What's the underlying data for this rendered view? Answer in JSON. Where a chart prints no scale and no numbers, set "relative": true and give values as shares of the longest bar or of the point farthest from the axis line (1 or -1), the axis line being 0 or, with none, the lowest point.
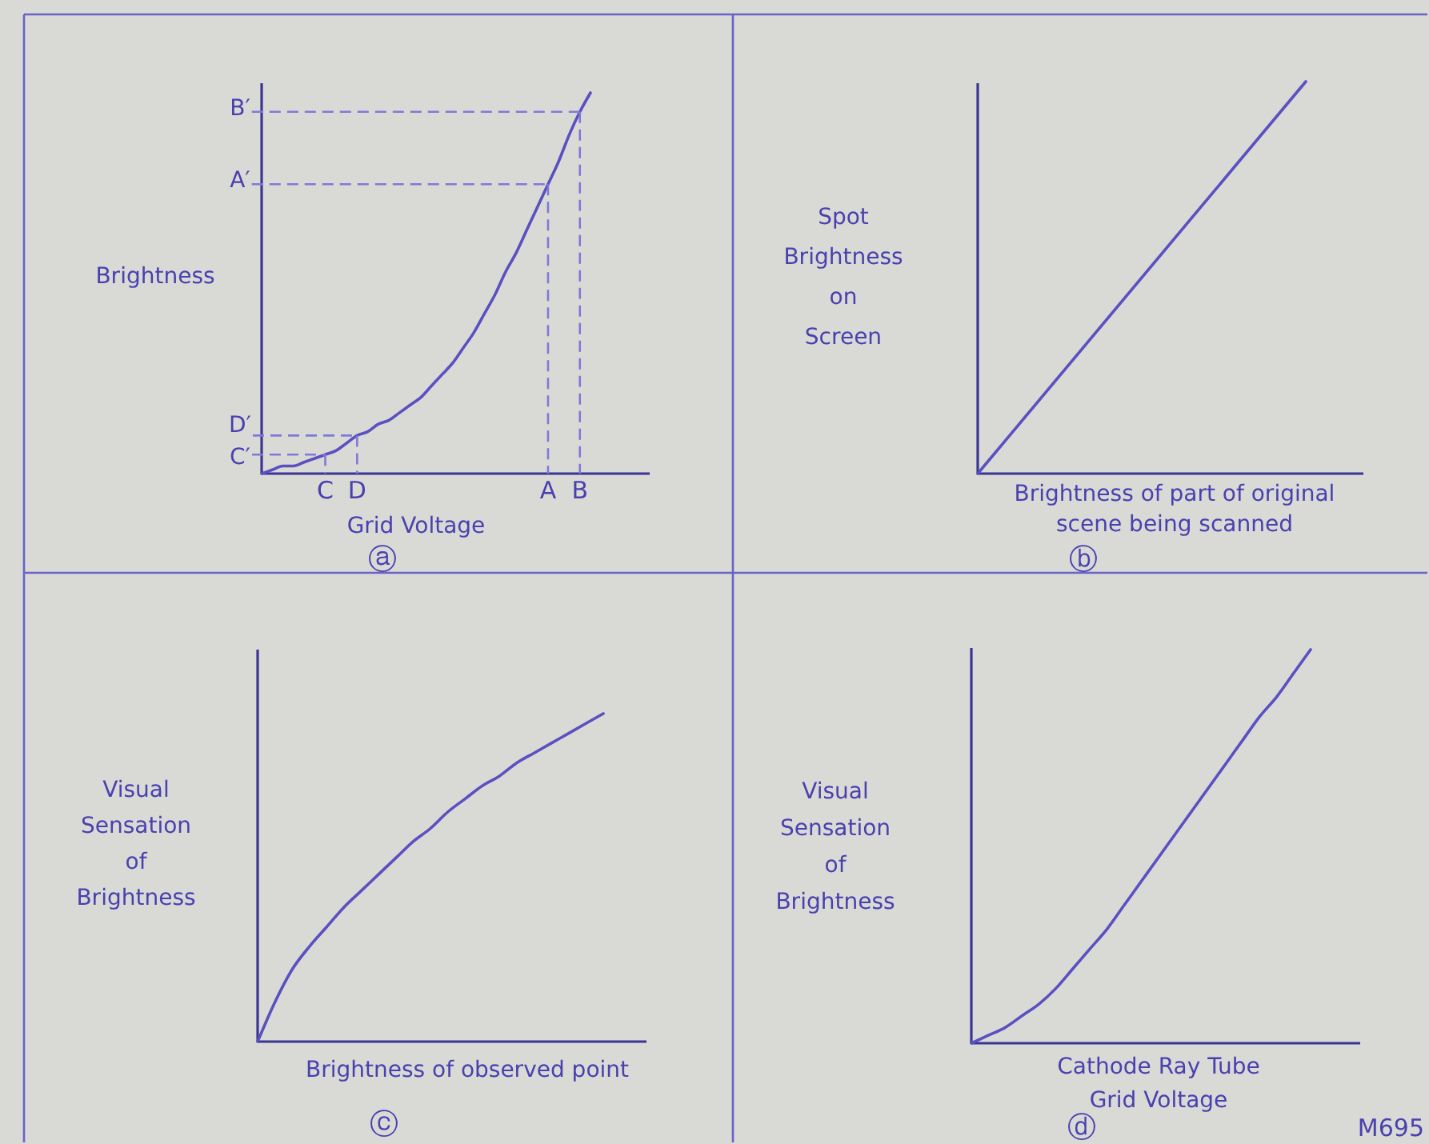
{
  "chart_data": [
    {
      "type": "line",
      "relative": true,
      "title": "ⓐ",
      "xlabel": "Grid Voltage",
      "ylabel": "Brightness",
      "color": "#5a50c2",
      "categories": [
        null,
        null,
        null,
        null,
        null,
        null,
        "C",
        null,
        null,
        "D",
        null,
        null,
        null,
        null,
        null,
        null,
        null,
        null,
        null,
        null,
        null,
        null,
        null,
        null,
        null,
        null,
        null,
        "A",
        null,
        null,
        "B",
        null
      ],
      "values": [
        0,
        0.01,
        0.02,
        0.02,
        0.03,
        0.04,
        0.05,
        0.06,
        0.08,
        0.1,
        0.11,
        0.13,
        0.14,
        0.16,
        0.18,
        0.2,
        0.23,
        0.26,
        0.29,
        0.33,
        0.37,
        0.42,
        0.47,
        0.53,
        0.58,
        0.64,
        0.7,
        0.76,
        0.82,
        0.89,
        0.95,
        1
      ],
      "annotations": [
        {
          "text": "C′",
          "x": "C",
          "y": 0.05
        },
        {
          "text": "D′",
          "x": "D",
          "y": 0.1
        },
        {
          "text": "A′",
          "x": "A",
          "y": 0.76
        },
        {
          "text": "B′",
          "x": "B",
          "y": 0.95
        }
      ]
    },
    {
      "type": "line",
      "relative": true,
      "title": "ⓑ",
      "xlabel": "Brightness of part of original\nscene being scanned",
      "ylabel": "Spot\nBrightness\non\nScreen",
      "color": "#5a50c2",
      "categories": [
        null,
        null
      ],
      "values": [
        0,
        1
      ]
    },
    {
      "type": "line",
      "relative": true,
      "title": "ⓒ",
      "xlabel": "Brightness of observed point",
      "ylabel": "Visual\nSensation\nof\nBrightness",
      "color": "#5a50c2",
      "categories": [
        null,
        null,
        null,
        null,
        null,
        null,
        null,
        null,
        null,
        null,
        null,
        null,
        null,
        null,
        null,
        null,
        null,
        null,
        null,
        null,
        null
      ],
      "values": [
        0,
        0.12,
        0.22,
        0.29,
        0.35,
        0.41,
        0.46,
        0.51,
        0.56,
        0.61,
        0.65,
        0.7,
        0.74,
        0.78,
        0.81,
        0.85,
        0.88,
        0.91,
        0.94,
        0.97,
        1
      ]
    },
    {
      "type": "line",
      "relative": true,
      "title": "ⓓ",
      "xlabel": "Cathode Ray Tube\nGrid Voltage",
      "ylabel": "Visual\nSensation\nof\nBrightness",
      "color": "#5a50c2",
      "categories": [
        null,
        null,
        null,
        null,
        null,
        null,
        null,
        null,
        null,
        null,
        null,
        null,
        null,
        null,
        null,
        null,
        null,
        null,
        null,
        null,
        null
      ],
      "values": [
        0,
        0.02,
        0.04,
        0.07,
        0.1,
        0.14,
        0.19,
        0.24,
        0.29,
        0.35,
        0.41,
        0.47,
        0.53,
        0.59,
        0.65,
        0.71,
        0.77,
        0.83,
        0.88,
        0.94,
        1
      ],
      "annotations": [
        "M695"
      ]
    }
  ]
}
